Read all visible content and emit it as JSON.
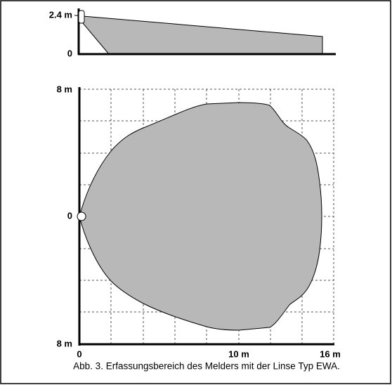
{
  "side_view": {
    "height_label": "2.4 m",
    "zero_label": "0"
  },
  "top_view": {
    "y_top_label": "8 m",
    "y_zero_label": "0",
    "y_bottom_label": "8 m",
    "x_zero_label": "0",
    "x_mid_label": "10 m",
    "x_end_label": "16 m"
  },
  "caption": "Abb. 3. Erfassungsbereich des Melders mit der Linse Typ EWA."
}
